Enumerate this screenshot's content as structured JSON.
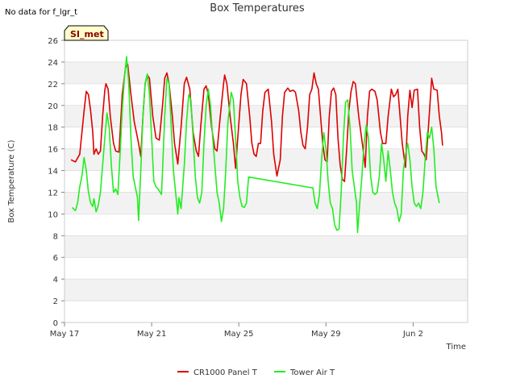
{
  "no_data_note": "No data for f_lgr_t",
  "site_badge": "SI_met",
  "colors": {
    "panel": "#dd0000",
    "tower": "#22ee22",
    "band": "#f2f2f2",
    "grid": "#dddddd",
    "badge_bg": "#ffffcc"
  },
  "chart_data": {
    "type": "line",
    "title": "Box Temperatures",
    "xlabel": "Time",
    "ylabel": "Box Temperature (C)",
    "xlim": [
      0,
      18.5
    ],
    "ylim": [
      0,
      26
    ],
    "yticks": [
      0,
      2,
      4,
      6,
      8,
      10,
      12,
      14,
      16,
      18,
      20,
      22,
      24,
      26
    ],
    "xticks": [
      {
        "day": 0,
        "label": "May 17"
      },
      {
        "day": 4,
        "label": "May 21"
      },
      {
        "day": 8,
        "label": "May 25"
      },
      {
        "day": 12,
        "label": "May 29"
      },
      {
        "day": 16,
        "label": "Jun 2"
      }
    ],
    "legend": [
      "CR1000 Panel T",
      "Tower Air T"
    ],
    "legend_position": "bottom-center",
    "series": [
      {
        "name": "CR1000 Panel T",
        "color": "#dd0000",
        "points": [
          [
            0.3,
            15.0
          ],
          [
            0.5,
            14.8
          ],
          [
            0.7,
            15.5
          ],
          [
            0.8,
            17.5
          ],
          [
            0.9,
            19.5
          ],
          [
            1.0,
            21.3
          ],
          [
            1.1,
            21.0
          ],
          [
            1.2,
            19.5
          ],
          [
            1.3,
            17.5
          ],
          [
            1.35,
            15.5
          ],
          [
            1.45,
            16.0
          ],
          [
            1.55,
            15.5
          ],
          [
            1.65,
            15.8
          ],
          [
            1.75,
            19.0
          ],
          [
            1.85,
            21.4
          ],
          [
            1.9,
            22.0
          ],
          [
            2.0,
            21.5
          ],
          [
            2.1,
            19.0
          ],
          [
            2.25,
            16.5
          ],
          [
            2.35,
            15.8
          ],
          [
            2.5,
            15.7
          ],
          [
            2.65,
            21.0
          ],
          [
            2.8,
            23.5
          ],
          [
            2.9,
            23.8
          ],
          [
            3.05,
            21.0
          ],
          [
            3.2,
            18.5
          ],
          [
            3.4,
            16.5
          ],
          [
            3.5,
            15.3
          ],
          [
            3.6,
            19.0
          ],
          [
            3.7,
            22.0
          ],
          [
            3.8,
            22.8
          ],
          [
            3.9,
            22.5
          ],
          [
            4.05,
            19.0
          ],
          [
            4.2,
            17.0
          ],
          [
            4.35,
            16.8
          ],
          [
            4.5,
            20.0
          ],
          [
            4.6,
            22.5
          ],
          [
            4.7,
            23.0
          ],
          [
            4.8,
            22.0
          ],
          [
            4.95,
            19.0
          ],
          [
            5.05,
            16.5
          ],
          [
            5.2,
            14.6
          ],
          [
            5.35,
            18.0
          ],
          [
            5.5,
            22.0
          ],
          [
            5.6,
            22.6
          ],
          [
            5.75,
            21.5
          ],
          [
            5.9,
            17.5
          ],
          [
            6.05,
            15.8
          ],
          [
            6.15,
            15.3
          ],
          [
            6.25,
            18.0
          ],
          [
            6.4,
            21.5
          ],
          [
            6.5,
            21.8
          ],
          [
            6.6,
            21.0
          ],
          [
            6.75,
            18.0
          ],
          [
            6.9,
            16.0
          ],
          [
            7.0,
            15.8
          ],
          [
            7.15,
            19.0
          ],
          [
            7.3,
            22.0
          ],
          [
            7.35,
            22.8
          ],
          [
            7.45,
            22.0
          ],
          [
            7.6,
            19.0
          ],
          [
            7.75,
            16.5
          ],
          [
            7.85,
            14.2
          ],
          [
            7.95,
            17.0
          ],
          [
            8.1,
            21.0
          ],
          [
            8.2,
            22.4
          ],
          [
            8.35,
            22.0
          ],
          [
            8.5,
            19.0
          ],
          [
            8.6,
            16.5
          ],
          [
            8.7,
            15.5
          ],
          [
            8.8,
            15.3
          ],
          [
            8.9,
            16.5
          ],
          [
            9.0,
            16.5
          ],
          [
            9.1,
            19.5
          ],
          [
            9.2,
            21.2
          ],
          [
            9.35,
            21.5
          ],
          [
            9.5,
            18.5
          ],
          [
            9.6,
            15.5
          ],
          [
            9.75,
            13.5
          ],
          [
            9.9,
            15.0
          ],
          [
            10.0,
            19.0
          ],
          [
            10.1,
            21.2
          ],
          [
            10.25,
            21.6
          ],
          [
            10.35,
            21.3
          ],
          [
            10.5,
            21.4
          ],
          [
            10.6,
            21.2
          ],
          [
            10.75,
            19.5
          ],
          [
            10.85,
            17.5
          ],
          [
            10.95,
            16.3
          ],
          [
            11.05,
            16.0
          ],
          [
            11.15,
            18.0
          ],
          [
            11.25,
            21.0
          ],
          [
            11.35,
            21.5
          ],
          [
            11.45,
            23.0
          ],
          [
            11.55,
            22.0
          ],
          [
            11.65,
            21.5
          ],
          [
            11.75,
            19.0
          ],
          [
            11.85,
            16.5
          ],
          [
            11.95,
            15.0
          ],
          [
            12.05,
            14.8
          ],
          [
            12.15,
            19.0
          ],
          [
            12.25,
            21.3
          ],
          [
            12.35,
            21.6
          ],
          [
            12.45,
            21.0
          ],
          [
            12.55,
            17.0
          ],
          [
            12.65,
            14.5
          ],
          [
            12.75,
            13.2
          ],
          [
            12.85,
            13.0
          ],
          [
            12.95,
            16.0
          ],
          [
            13.05,
            19.5
          ],
          [
            13.15,
            21.3
          ],
          [
            13.25,
            22.2
          ],
          [
            13.35,
            22.0
          ],
          [
            13.5,
            19.0
          ],
          [
            13.6,
            17.5
          ],
          [
            13.7,
            16.0
          ],
          [
            13.8,
            14.3
          ],
          [
            13.9,
            19.0
          ],
          [
            14.0,
            21.3
          ],
          [
            14.1,
            21.5
          ],
          [
            14.25,
            21.3
          ],
          [
            14.35,
            20.5
          ],
          [
            14.5,
            17.5
          ],
          [
            14.6,
            16.5
          ],
          [
            14.75,
            16.5
          ],
          [
            14.85,
            19.0
          ],
          [
            15.0,
            21.5
          ],
          [
            15.1,
            20.8
          ],
          [
            15.2,
            21.0
          ],
          [
            15.3,
            21.5
          ],
          [
            15.4,
            19.0
          ],
          [
            15.5,
            16.5
          ],
          [
            15.6,
            15.0
          ],
          [
            15.65,
            14.3
          ],
          [
            15.75,
            19.0
          ],
          [
            15.85,
            21.4
          ],
          [
            15.95,
            19.8
          ],
          [
            16.05,
            21.4
          ],
          [
            16.2,
            21.5
          ],
          [
            16.3,
            18.0
          ],
          [
            16.4,
            15.8
          ],
          [
            16.5,
            15.5
          ],
          [
            16.6,
            15.0
          ],
          [
            16.7,
            18.0
          ],
          [
            16.8,
            21.0
          ],
          [
            16.85,
            22.5
          ],
          [
            16.95,
            21.5
          ],
          [
            17.1,
            21.4
          ],
          [
            17.2,
            19.0
          ],
          [
            17.3,
            17.5
          ],
          [
            17.35,
            16.3
          ]
        ]
      },
      {
        "name": "Tower Air T",
        "color": "#22ee22",
        "points": [
          [
            0.35,
            10.6
          ],
          [
            0.5,
            10.3
          ],
          [
            0.6,
            11.0
          ],
          [
            0.7,
            12.5
          ],
          [
            0.8,
            13.5
          ],
          [
            0.9,
            15.2
          ],
          [
            1.0,
            14.0
          ],
          [
            1.1,
            12.0
          ],
          [
            1.2,
            11.0
          ],
          [
            1.3,
            10.7
          ],
          [
            1.35,
            11.4
          ],
          [
            1.45,
            10.2
          ],
          [
            1.55,
            10.8
          ],
          [
            1.65,
            12.0
          ],
          [
            1.75,
            14.5
          ],
          [
            1.85,
            17.0
          ],
          [
            1.95,
            19.3
          ],
          [
            2.05,
            18.0
          ],
          [
            2.15,
            14.5
          ],
          [
            2.25,
            12.0
          ],
          [
            2.35,
            12.3
          ],
          [
            2.45,
            11.8
          ],
          [
            2.55,
            15.5
          ],
          [
            2.65,
            19.5
          ],
          [
            2.75,
            22.5
          ],
          [
            2.85,
            24.5
          ],
          [
            2.95,
            22.0
          ],
          [
            3.05,
            17.0
          ],
          [
            3.15,
            13.5
          ],
          [
            3.25,
            12.5
          ],
          [
            3.35,
            11.5
          ],
          [
            3.4,
            9.4
          ],
          [
            3.5,
            14.0
          ],
          [
            3.6,
            19.0
          ],
          [
            3.7,
            22.0
          ],
          [
            3.8,
            22.9
          ],
          [
            3.9,
            21.0
          ],
          [
            4.0,
            17.0
          ],
          [
            4.1,
            13.0
          ],
          [
            4.2,
            12.5
          ],
          [
            4.3,
            12.3
          ],
          [
            4.45,
            11.8
          ],
          [
            4.5,
            14.0
          ],
          [
            4.6,
            19.0
          ],
          [
            4.7,
            22.5
          ],
          [
            4.8,
            22.0
          ],
          [
            4.9,
            18.0
          ],
          [
            5.0,
            14.0
          ],
          [
            5.1,
            12.0
          ],
          [
            5.2,
            10.0
          ],
          [
            5.25,
            11.5
          ],
          [
            5.35,
            10.5
          ],
          [
            5.5,
            14.5
          ],
          [
            5.6,
            18.5
          ],
          [
            5.7,
            21.0
          ],
          [
            5.8,
            20.5
          ],
          [
            5.9,
            17.0
          ],
          [
            6.0,
            13.5
          ],
          [
            6.1,
            11.5
          ],
          [
            6.2,
            11.0
          ],
          [
            6.3,
            12.0
          ],
          [
            6.4,
            16.5
          ],
          [
            6.5,
            20.0
          ],
          [
            6.6,
            21.5
          ],
          [
            6.7,
            20.0
          ],
          [
            6.8,
            17.0
          ],
          [
            6.9,
            14.5
          ],
          [
            7.0,
            12.0
          ],
          [
            7.1,
            11.0
          ],
          [
            7.2,
            9.3
          ],
          [
            7.3,
            10.5
          ],
          [
            7.4,
            14.0
          ],
          [
            7.5,
            18.5
          ],
          [
            7.65,
            21.2
          ],
          [
            7.75,
            20.5
          ],
          [
            7.85,
            17.0
          ],
          [
            7.95,
            13.0
          ],
          [
            8.05,
            11.5
          ],
          [
            8.15,
            10.7
          ],
          [
            8.25,
            10.6
          ],
          [
            8.35,
            11.0
          ],
          [
            8.45,
            13.4
          ],
          [
            11.4,
            12.4
          ],
          [
            11.5,
            11.0
          ],
          [
            11.6,
            10.5
          ],
          [
            11.7,
            11.8
          ],
          [
            11.8,
            15.0
          ],
          [
            11.9,
            17.5
          ],
          [
            12.0,
            16.0
          ],
          [
            12.1,
            13.0
          ],
          [
            12.2,
            11.0
          ],
          [
            12.3,
            10.5
          ],
          [
            12.4,
            9.0
          ],
          [
            12.5,
            8.5
          ],
          [
            12.6,
            8.6
          ],
          [
            12.7,
            12.0
          ],
          [
            12.8,
            17.0
          ],
          [
            12.9,
            20.3
          ],
          [
            13.0,
            20.5
          ],
          [
            13.1,
            18.0
          ],
          [
            13.2,
            14.0
          ],
          [
            13.3,
            12.5
          ],
          [
            13.4,
            11.0
          ],
          [
            13.45,
            8.3
          ],
          [
            13.55,
            11.0
          ],
          [
            13.65,
            13.5
          ],
          [
            13.75,
            16.5
          ],
          [
            13.85,
            18.2
          ],
          [
            13.95,
            17.0
          ],
          [
            14.05,
            13.5
          ],
          [
            14.15,
            12.0
          ],
          [
            14.25,
            11.8
          ],
          [
            14.35,
            12.0
          ],
          [
            14.45,
            13.5
          ],
          [
            14.55,
            16.5
          ],
          [
            14.65,
            15.0
          ],
          [
            14.75,
            13.0
          ],
          [
            14.85,
            15.8
          ],
          [
            14.95,
            14.0
          ],
          [
            15.05,
            12.0
          ],
          [
            15.15,
            11.0
          ],
          [
            15.25,
            10.5
          ],
          [
            15.35,
            9.3
          ],
          [
            15.45,
            10.0
          ],
          [
            15.55,
            14.0
          ],
          [
            15.65,
            15.5
          ],
          [
            15.75,
            16.5
          ],
          [
            15.85,
            15.0
          ],
          [
            15.95,
            12.5
          ],
          [
            16.05,
            11.0
          ],
          [
            16.15,
            10.7
          ],
          [
            16.25,
            11.0
          ],
          [
            16.35,
            10.5
          ],
          [
            16.45,
            12.0
          ],
          [
            16.55,
            15.0
          ],
          [
            16.65,
            17.5
          ],
          [
            16.75,
            17.0
          ],
          [
            16.85,
            18.0
          ],
          [
            16.95,
            16.0
          ],
          [
            17.05,
            12.5
          ],
          [
            17.15,
            11.5
          ],
          [
            17.2,
            11.0
          ]
        ]
      }
    ]
  }
}
